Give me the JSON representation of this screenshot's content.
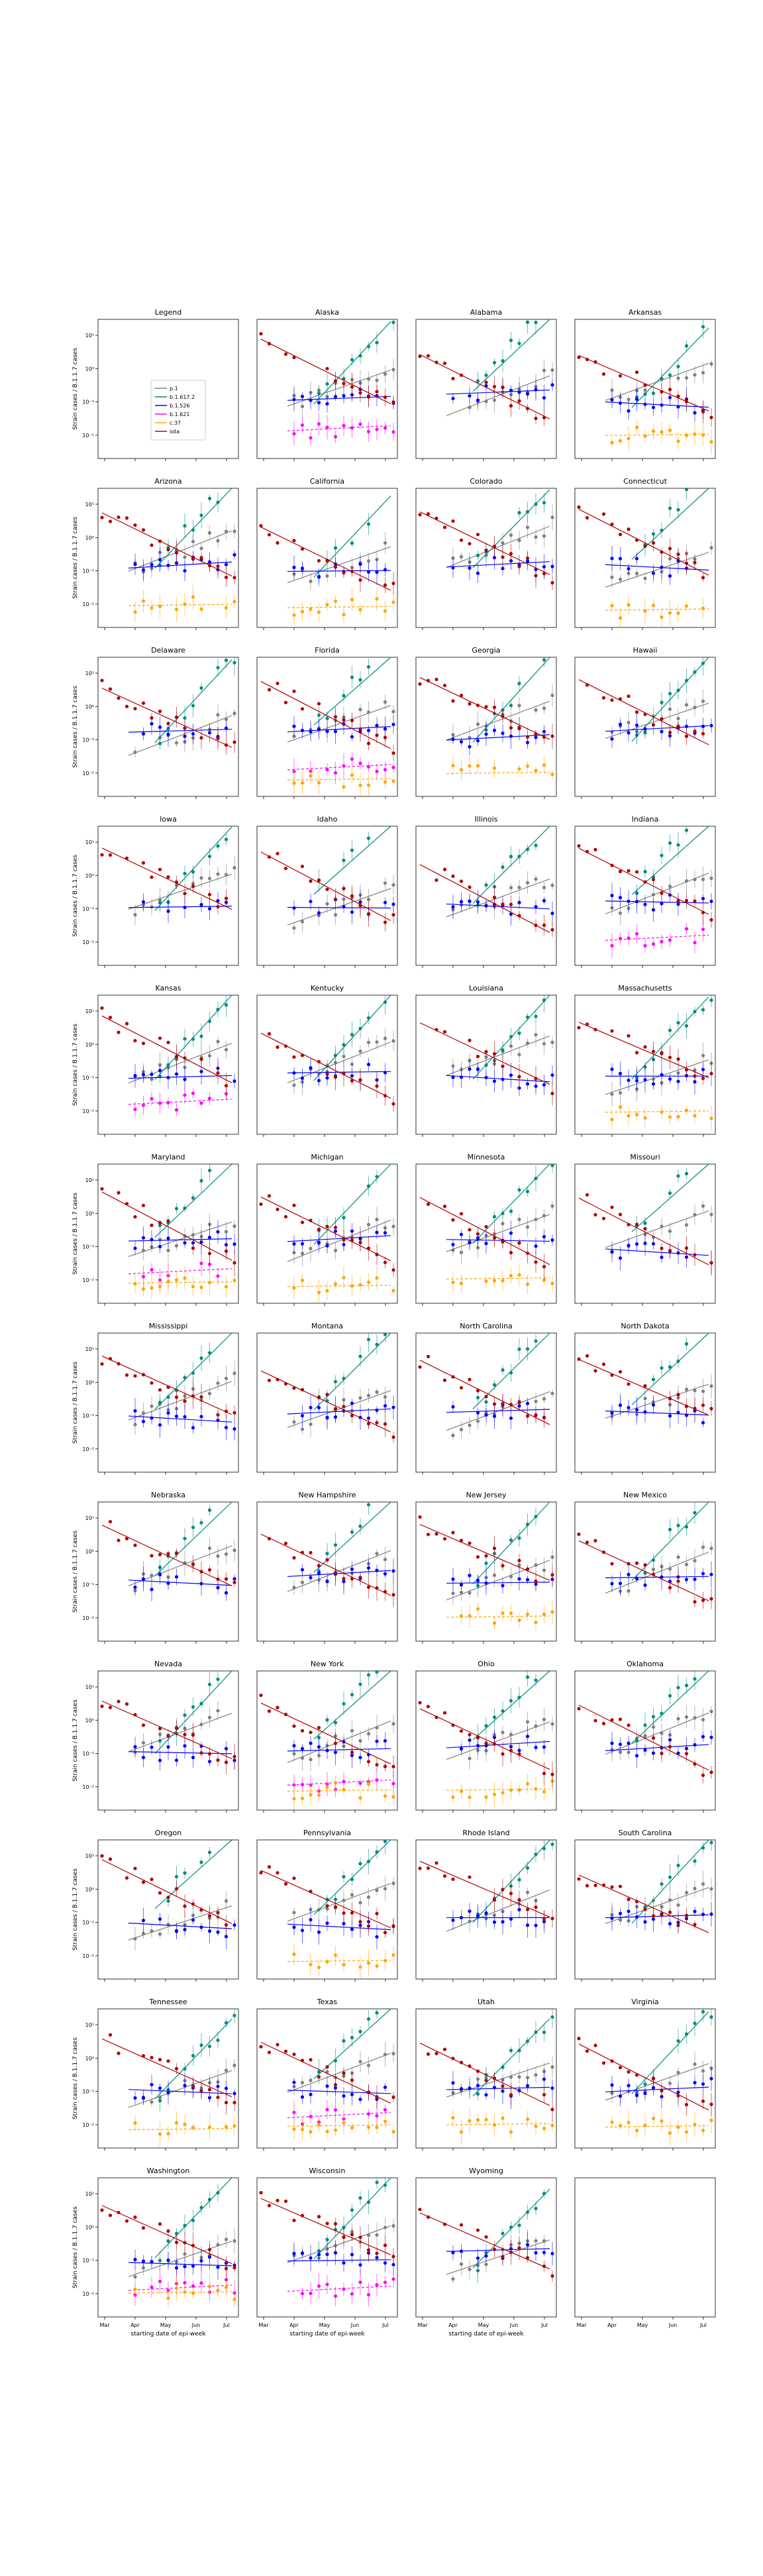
{
  "figure": {
    "ylabel": "Strain cases / B.1.1.7 cases",
    "xlabel": "starting date of epi-week",
    "x_tick_labels": [
      "Mar",
      "Apr",
      "May",
      "Jun",
      "Jul"
    ],
    "y_tick_labels": [
      "10¹",
      "10⁰",
      "10⁻¹",
      "10⁻²"
    ]
  },
  "legend": {
    "title": "Legend",
    "entries": [
      {
        "label": "p.1",
        "color": "#808080"
      },
      {
        "label": "b.1.617.2",
        "color": "#008b80"
      },
      {
        "label": "b.1.526",
        "color": "#0000ff"
      },
      {
        "label": "b.1.621",
        "color": "#ff00ff"
      },
      {
        "label": "c.37",
        "color": "#ffa500"
      },
      {
        "label": "iota",
        "color": "#b00000"
      }
    ]
  },
  "chart_data": {
    "type": "scatter",
    "yscale": "log",
    "ylim": [
      0.002,
      30
    ],
    "x_axis": "epi-week start date",
    "xlim": [
      "Mar",
      "Jul"
    ],
    "states": [
      "Alaska",
      "Alabama",
      "Arkansas",
      "Arizona",
      "California",
      "Colorado",
      "Connecticut",
      "Delaware",
      "Florida",
      "Georgia",
      "Hawaii",
      "Iowa",
      "Idaho",
      "Illinois",
      "Indiana",
      "Kansas",
      "Kentucky",
      "Louisiana",
      "Massachusetts",
      "Maryland",
      "Michigan",
      "Minnesota",
      "Missouri",
      "Mississippi",
      "Montana",
      "North Carolina",
      "North Dakota",
      "Nebraska",
      "New Hampshire",
      "New Jersey",
      "New Mexico",
      "Nevada",
      "New York",
      "Ohio",
      "Oklahoma",
      "Oregon",
      "Pennsylvania",
      "Rhode Island",
      "South Carolina",
      "Tennessee",
      "Texas",
      "Utah",
      "Virginia",
      "Washington",
      "Wisconsin",
      "Wyoming"
    ],
    "series": [
      {
        "name": "p.1",
        "color": "#808080",
        "trend": "rising",
        "approx_range": [
          0.03,
          2
        ]
      },
      {
        "name": "b.1.617.2",
        "color": "#008b80",
        "trend": "rising steeply",
        "approx_range": [
          0.003,
          20
        ]
      },
      {
        "name": "b.1.526",
        "color": "#0000ff",
        "trend": "flat",
        "approx_range": [
          0.05,
          0.3
        ]
      },
      {
        "name": "b.1.621",
        "color": "#ff00ff",
        "trend": "flat",
        "approx_range": [
          0.005,
          0.05
        ]
      },
      {
        "name": "c.37",
        "color": "#ffa500",
        "trend": "flat",
        "approx_range": [
          0.005,
          0.02
        ]
      },
      {
        "name": "iota",
        "color": "#b00000",
        "trend": "falling",
        "approx_range": [
          0.05,
          5
        ]
      }
    ],
    "panel_series": {
      "Alaska": [
        "p.1",
        "b.1.617.2",
        "b.1.526",
        "b.1.621",
        "iota"
      ],
      "Alabama": [
        "p.1",
        "b.1.617.2",
        "b.1.526",
        "iota"
      ],
      "Arkansas": [
        "p.1",
        "b.1.617.2",
        "b.1.526",
        "c.37",
        "iota"
      ],
      "Arizona": [
        "p.1",
        "b.1.617.2",
        "b.1.526",
        "c.37",
        "iota"
      ],
      "California": [
        "p.1",
        "b.1.617.2",
        "b.1.526",
        "c.37",
        "iota"
      ],
      "Colorado": [
        "p.1",
        "b.1.617.2",
        "b.1.526",
        "iota"
      ],
      "Connecticut": [
        "p.1",
        "b.1.617.2",
        "b.1.526",
        "c.37",
        "iota"
      ],
      "Delaware": [
        "p.1",
        "b.1.617.2",
        "b.1.526",
        "iota"
      ],
      "Florida": [
        "p.1",
        "b.1.617.2",
        "b.1.526",
        "b.1.621",
        "c.37",
        "iota"
      ],
      "Georgia": [
        "p.1",
        "b.1.617.2",
        "b.1.526",
        "c.37",
        "iota"
      ],
      "Hawaii": [
        "p.1",
        "b.1.617.2",
        "b.1.526",
        "iota"
      ],
      "Iowa": [
        "p.1",
        "b.1.617.2",
        "b.1.526",
        "iota"
      ],
      "Idaho": [
        "p.1",
        "b.1.617.2",
        "b.1.526",
        "iota"
      ],
      "Illinois": [
        "p.1",
        "b.1.617.2",
        "b.1.526",
        "iota"
      ],
      "Indiana": [
        "p.1",
        "b.1.617.2",
        "b.1.526",
        "b.1.621",
        "iota"
      ],
      "Kansas": [
        "p.1",
        "b.1.617.2",
        "b.1.526",
        "b.1.621",
        "iota"
      ],
      "Kentucky": [
        "p.1",
        "b.1.617.2",
        "b.1.526",
        "iota"
      ],
      "Louisiana": [
        "p.1",
        "b.1.617.2",
        "b.1.526",
        "iota"
      ],
      "Massachusetts": [
        "p.1",
        "b.1.617.2",
        "b.1.526",
        "c.37",
        "iota"
      ],
      "Maryland": [
        "p.1",
        "b.1.617.2",
        "b.1.526",
        "b.1.621",
        "c.37",
        "iota"
      ],
      "Michigan": [
        "p.1",
        "b.1.617.2",
        "b.1.526",
        "c.37",
        "iota"
      ],
      "Minnesota": [
        "p.1",
        "b.1.617.2",
        "b.1.526",
        "c.37",
        "iota"
      ],
      "Missouri": [
        "p.1",
        "b.1.617.2",
        "b.1.526",
        "iota"
      ],
      "Mississippi": [
        "p.1",
        "b.1.617.2",
        "b.1.526",
        "iota"
      ],
      "Montana": [
        "p.1",
        "b.1.617.2",
        "b.1.526",
        "iota"
      ],
      "North Carolina": [
        "p.1",
        "b.1.617.2",
        "b.1.526",
        "iota"
      ],
      "North Dakota": [
        "p.1",
        "b.1.617.2",
        "b.1.526",
        "iota"
      ],
      "Nebraska": [
        "p.1",
        "b.1.617.2",
        "b.1.526",
        "iota"
      ],
      "New Hampshire": [
        "p.1",
        "b.1.617.2",
        "b.1.526",
        "iota"
      ],
      "New Jersey": [
        "p.1",
        "b.1.617.2",
        "b.1.526",
        "c.37",
        "iota"
      ],
      "New Mexico": [
        "p.1",
        "b.1.617.2",
        "b.1.526",
        "iota"
      ],
      "Nevada": [
        "p.1",
        "b.1.617.2",
        "b.1.526",
        "iota"
      ],
      "New York": [
        "p.1",
        "b.1.617.2",
        "b.1.526",
        "b.1.621",
        "c.37",
        "iota"
      ],
      "Ohio": [
        "p.1",
        "b.1.617.2",
        "b.1.526",
        "c.37",
        "iota"
      ],
      "Oklahoma": [
        "p.1",
        "b.1.617.2",
        "b.1.526",
        "iota"
      ],
      "Oregon": [
        "p.1",
        "b.1.617.2",
        "b.1.526",
        "iota"
      ],
      "Pennsylvania": [
        "p.1",
        "b.1.617.2",
        "b.1.526",
        "c.37",
        "iota"
      ],
      "Rhode Island": [
        "p.1",
        "b.1.617.2",
        "b.1.526",
        "iota"
      ],
      "South Carolina": [
        "p.1",
        "b.1.617.2",
        "b.1.526",
        "iota"
      ],
      "Tennessee": [
        "p.1",
        "b.1.617.2",
        "b.1.526",
        "c.37",
        "iota"
      ],
      "Texas": [
        "p.1",
        "b.1.617.2",
        "b.1.526",
        "b.1.621",
        "c.37",
        "iota"
      ],
      "Utah": [
        "p.1",
        "b.1.617.2",
        "b.1.526",
        "c.37",
        "iota"
      ],
      "Virginia": [
        "p.1",
        "b.1.617.2",
        "b.1.526",
        "c.37",
        "iota"
      ],
      "Washington": [
        "p.1",
        "b.1.617.2",
        "b.1.526",
        "b.1.621",
        "c.37",
        "iota"
      ],
      "Wisconsin": [
        "p.1",
        "b.1.617.2",
        "b.1.526",
        "b.1.621",
        "iota"
      ],
      "Wyoming": [
        "p.1",
        "b.1.617.2",
        "b.1.526",
        "iota"
      ]
    }
  }
}
